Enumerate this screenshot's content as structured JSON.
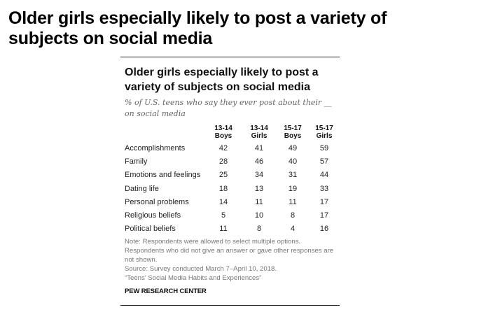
{
  "page_title": "Older girls especially likely to post a variety of subjects on social media",
  "chart_data": {
    "type": "table",
    "title": "Older girls especially likely to post a variety of subjects on social media",
    "subtitle": "% of U.S. teens who say they ever post about their __ on social media",
    "columns": [
      {
        "age": "13-14",
        "gender": "Boys"
      },
      {
        "age": "13-14",
        "gender": "Girls"
      },
      {
        "age": "15-17",
        "gender": "Boys"
      },
      {
        "age": "15-17",
        "gender": "Girls"
      }
    ],
    "rows": [
      {
        "label": "Accomplishments",
        "values": [
          42,
          41,
          49,
          59
        ]
      },
      {
        "label": "Family",
        "values": [
          28,
          46,
          40,
          57
        ]
      },
      {
        "label": "Emotions and feelings",
        "values": [
          25,
          34,
          31,
          44
        ]
      },
      {
        "label": "Dating life",
        "values": [
          18,
          13,
          19,
          33
        ]
      },
      {
        "label": "Personal problems",
        "values": [
          14,
          11,
          11,
          17
        ]
      },
      {
        "label": "Religious beliefs",
        "values": [
          5,
          10,
          8,
          17
        ]
      },
      {
        "label": "Political beliefs",
        "values": [
          11,
          8,
          4,
          16
        ]
      }
    ],
    "notes": [
      "Note: Respondents were allowed to select multiple options. Respondents who did not give an answer or gave other responses are not shown.",
      "Source: Survey conducted March 7–April 10, 2018.",
      "“Teens’ Social Media Habits and Experiences”"
    ],
    "brand": "PEW RESEARCH CENTER"
  }
}
